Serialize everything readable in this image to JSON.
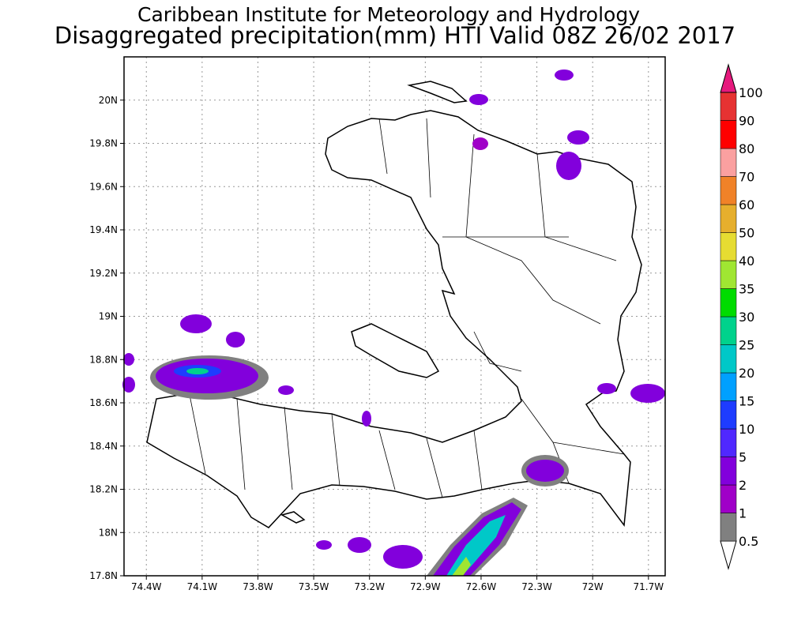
{
  "title": "Caribbean Institute for Meteorology and Hydrology",
  "subtitle": "Disaggregated precipitation(mm) HTI Valid 08Z 26/02 2017",
  "map": {
    "xlim": [
      -74.52,
      -71.61
    ],
    "ylim": [
      17.8,
      20.2
    ],
    "xticks": [
      {
        "value": -74.4,
        "label": "74.4W"
      },
      {
        "value": -74.1,
        "label": "74.1W"
      },
      {
        "value": -73.8,
        "label": "73.8W"
      },
      {
        "value": -73.5,
        "label": "73.5W"
      },
      {
        "value": -73.2,
        "label": "73.2W"
      },
      {
        "value": -72.9,
        "label": "72.9W"
      },
      {
        "value": -72.6,
        "label": "72.6W"
      },
      {
        "value": -72.3,
        "label": "72.3W"
      },
      {
        "value": -72,
        "label": "72W"
      },
      {
        "value": -71.7,
        "label": "71.7W"
      }
    ],
    "yticks": [
      {
        "value": 17.8,
        "label": "17.8N"
      },
      {
        "value": 18,
        "label": "18N"
      },
      {
        "value": 18.2,
        "label": "18.2N"
      },
      {
        "value": 18.4,
        "label": "18.4N"
      },
      {
        "value": 18.6,
        "label": "18.6N"
      },
      {
        "value": 18.8,
        "label": "18.8N"
      },
      {
        "value": 19,
        "label": "19N"
      },
      {
        "value": 19.2,
        "label": "19.2N"
      },
      {
        "value": 19.4,
        "label": "19.4N"
      },
      {
        "value": 19.6,
        "label": "19.6N"
      },
      {
        "value": 19.8,
        "label": "19.8N"
      },
      {
        "value": 20,
        "label": "20N"
      }
    ]
  },
  "colorbar": {
    "levels": [
      0.5,
      1,
      2,
      5,
      10,
      15,
      20,
      25,
      30,
      35,
      40,
      50,
      60,
      70,
      80,
      90,
      100
    ],
    "colors": [
      "#ffffff",
      "#808080",
      "#a000c8",
      "#8200dc",
      "#5028ff",
      "#1e3cff",
      "#00a0ff",
      "#00c8c8",
      "#00d28c",
      "#00dc00",
      "#a0e632",
      "#e6dc32",
      "#e6af2d",
      "#f08228",
      "#faa0a0",
      "#ff0000",
      "#e63232",
      "#e6197d"
    ]
  }
}
